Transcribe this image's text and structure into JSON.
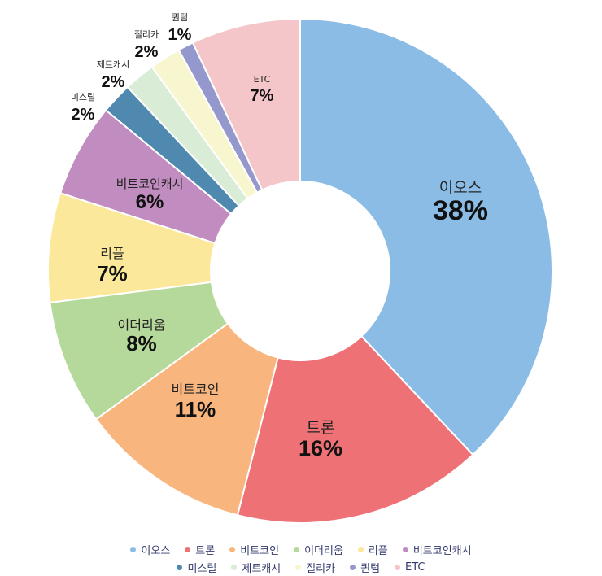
{
  "chart_data": {
    "type": "pie",
    "donut": true,
    "legend_position": "bottom",
    "slices": [
      {
        "label": "이오스",
        "value": 38,
        "pct_label": "38%",
        "color": "#8bbce6"
      },
      {
        "label": "트론",
        "value": 16,
        "pct_label": "16%",
        "color": "#ee7275"
      },
      {
        "label": "비트코인",
        "value": 11,
        "pct_label": "11%",
        "color": "#f9b57e"
      },
      {
        "label": "이더리움",
        "value": 8,
        "pct_label": "8%",
        "color": "#b5d89b"
      },
      {
        "label": "리플",
        "value": 7,
        "pct_label": "7%",
        "color": "#fbe89a"
      },
      {
        "label": "비트코인캐시",
        "value": 6,
        "pct_label": "6%",
        "color": "#c18cc0"
      },
      {
        "label": "미스릴",
        "value": 2,
        "pct_label": "2%",
        "color": "#5089b0"
      },
      {
        "label": "제트캐시",
        "value": 2,
        "pct_label": "2%",
        "color": "#d8ecd6"
      },
      {
        "label": "질리카",
        "value": 2,
        "pct_label": "2%",
        "color": "#f8f6cf"
      },
      {
        "label": "퀀텀",
        "value": 1,
        "pct_label": "1%",
        "color": "#9598cc"
      },
      {
        "label": "ETC",
        "value": 7,
        "pct_label": "7%",
        "color": "#f4c5c9"
      }
    ]
  }
}
